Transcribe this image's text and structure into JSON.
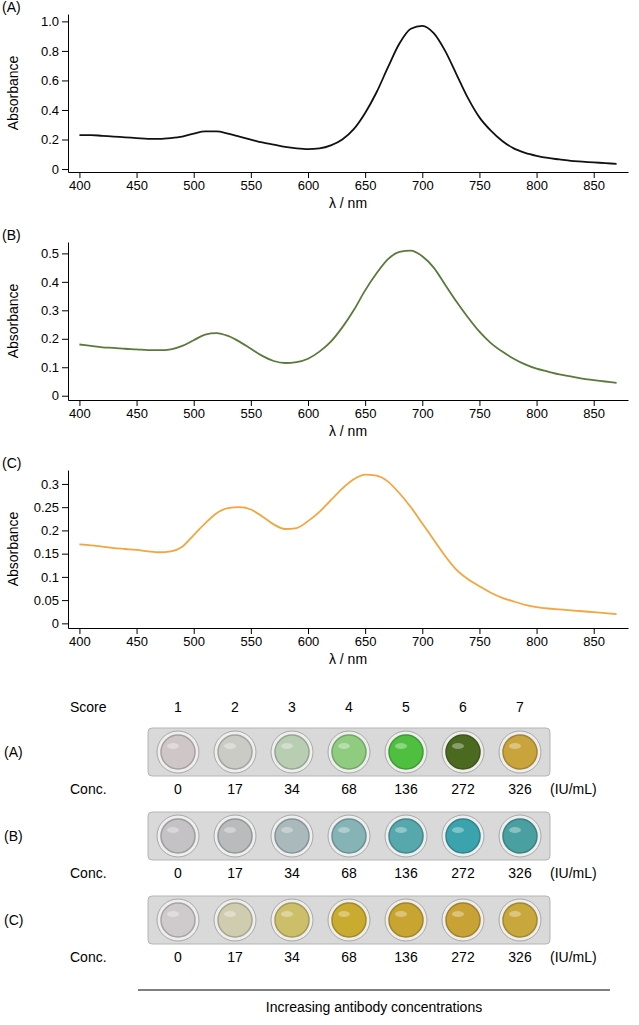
{
  "chart_data": [
    {
      "type": "line",
      "title": "(A)",
      "xlabel": "λ / nm",
      "ylabel": "Absorbance",
      "xlim": [
        390,
        880
      ],
      "xticks": [
        400,
        450,
        500,
        550,
        600,
        650,
        700,
        750,
        800,
        850
      ],
      "ylim": [
        -0.02,
        1.05
      ],
      "yticks": [
        0,
        0.2,
        0.4,
        0.6,
        0.8,
        {
          "value": 1,
          "label": "1.0"
        }
      ],
      "x": [
        400,
        410,
        420,
        430,
        440,
        450,
        460,
        470,
        480,
        490,
        500,
        510,
        520,
        530,
        540,
        550,
        560,
        570,
        580,
        590,
        600,
        610,
        620,
        630,
        640,
        650,
        660,
        670,
        680,
        690,
        700,
        710,
        720,
        730,
        740,
        750,
        760,
        770,
        780,
        790,
        800,
        810,
        820,
        830,
        840,
        850,
        860,
        870
      ],
      "series": [
        {
          "color": "#111111",
          "values": [
            0.23,
            0.23,
            0.225,
            0.22,
            0.215,
            0.21,
            0.205,
            0.205,
            0.21,
            0.22,
            0.24,
            0.255,
            0.255,
            0.24,
            0.22,
            0.2,
            0.18,
            0.165,
            0.15,
            0.14,
            0.135,
            0.14,
            0.16,
            0.2,
            0.27,
            0.38,
            0.52,
            0.69,
            0.85,
            0.95,
            0.97,
            0.92,
            0.8,
            0.64,
            0.48,
            0.35,
            0.26,
            0.19,
            0.14,
            0.11,
            0.09,
            0.075,
            0.065,
            0.055,
            0.05,
            0.045,
            0.04,
            0.035
          ]
        }
      ]
    },
    {
      "type": "line",
      "title": "(B)",
      "xlabel": "λ / nm",
      "ylabel": "Absorbance",
      "xlim": [
        390,
        880
      ],
      "xticks": [
        400,
        450,
        500,
        550,
        600,
        650,
        700,
        750,
        800,
        850
      ],
      "ylim": [
        -0.015,
        0.54
      ],
      "yticks": [
        0,
        0.1,
        0.2,
        0.3,
        0.4,
        0.5
      ],
      "x": [
        400,
        410,
        420,
        430,
        440,
        450,
        460,
        470,
        480,
        490,
        500,
        510,
        520,
        530,
        540,
        550,
        560,
        570,
        580,
        590,
        600,
        610,
        620,
        630,
        640,
        650,
        660,
        670,
        680,
        690,
        700,
        710,
        720,
        730,
        740,
        750,
        760,
        770,
        780,
        790,
        800,
        810,
        820,
        830,
        840,
        850,
        860,
        870
      ],
      "series": [
        {
          "color": "#5a7a3a",
          "values": [
            0.18,
            0.175,
            0.17,
            0.168,
            0.165,
            0.163,
            0.16,
            0.16,
            0.163,
            0.175,
            0.195,
            0.215,
            0.22,
            0.21,
            0.19,
            0.165,
            0.14,
            0.122,
            0.115,
            0.118,
            0.13,
            0.155,
            0.19,
            0.24,
            0.3,
            0.37,
            0.43,
            0.48,
            0.505,
            0.51,
            0.49,
            0.45,
            0.39,
            0.33,
            0.275,
            0.225,
            0.185,
            0.155,
            0.13,
            0.11,
            0.095,
            0.085,
            0.075,
            0.068,
            0.06,
            0.055,
            0.05,
            0.045
          ]
        }
      ]
    },
    {
      "type": "line",
      "title": "(C)",
      "xlabel": "λ / nm",
      "ylabel": "Absorbance",
      "xlim": [
        390,
        880
      ],
      "xticks": [
        400,
        450,
        500,
        550,
        600,
        650,
        700,
        750,
        800,
        850
      ],
      "ylim": [
        -0.01,
        0.33
      ],
      "yticks": [
        0,
        0.05,
        0.1,
        0.15,
        0.2,
        0.25,
        0.3
      ],
      "x": [
        400,
        410,
        420,
        430,
        440,
        450,
        460,
        470,
        480,
        490,
        500,
        510,
        520,
        530,
        540,
        550,
        560,
        570,
        580,
        590,
        600,
        610,
        620,
        630,
        640,
        650,
        660,
        670,
        680,
        690,
        700,
        710,
        720,
        730,
        740,
        750,
        760,
        770,
        780,
        790,
        800,
        810,
        820,
        830,
        840,
        850,
        860,
        870
      ],
      "series": [
        {
          "color": "#f5a53d",
          "values": [
            0.17,
            0.168,
            0.165,
            0.162,
            0.16,
            0.158,
            0.155,
            0.153,
            0.155,
            0.165,
            0.19,
            0.215,
            0.237,
            0.248,
            0.25,
            0.245,
            0.23,
            0.213,
            0.203,
            0.205,
            0.22,
            0.24,
            0.265,
            0.29,
            0.31,
            0.32,
            0.318,
            0.305,
            0.28,
            0.25,
            0.215,
            0.18,
            0.145,
            0.115,
            0.095,
            0.08,
            0.066,
            0.055,
            0.047,
            0.04,
            0.035,
            0.032,
            0.03,
            0.028,
            0.026,
            0.024,
            0.022,
            0.02
          ]
        }
      ]
    }
  ],
  "wells": {
    "score_label": "Score",
    "scores": [
      1,
      2,
      3,
      4,
      5,
      6,
      7
    ],
    "footer": "Increasing antibody concentrations",
    "rows": [
      {
        "label": "(A)",
        "conc_label": "Conc.",
        "concentrations": [
          0,
          17,
          34,
          68,
          136,
          272,
          326
        ],
        "unit": "(IU/mL)",
        "colors": [
          "#cfc6c8",
          "#c9cbc4",
          "#b9cdb3",
          "#8fcc80",
          "#4fbf3f",
          "#4b6a1f",
          "#c9a33b"
        ]
      },
      {
        "label": "(B)",
        "conc_label": "Conc.",
        "concentrations": [
          0,
          17,
          34,
          68,
          136,
          272,
          326
        ],
        "unit": "(IU/mL)",
        "colors": [
          "#c4c2c4",
          "#b9bbbc",
          "#a9b9bc",
          "#86b3b6",
          "#56a8ad",
          "#3aa3ad",
          "#4aa0a0"
        ]
      },
      {
        "label": "(C)",
        "conc_label": "Conc.",
        "concentrations": [
          0,
          17,
          34,
          68,
          136,
          272,
          326
        ],
        "unit": "(IU/mL)",
        "colors": [
          "#cfcbcc",
          "#d0ccb0",
          "#cdbf6a",
          "#c9ab2f",
          "#c8a530",
          "#c9a235",
          "#c8a83c"
        ]
      }
    ]
  }
}
